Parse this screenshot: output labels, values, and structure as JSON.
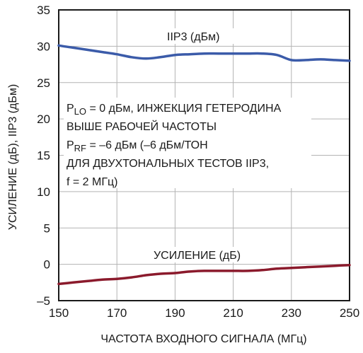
{
  "chart_data": {
    "type": "line",
    "xlabel": "ЧАСТОТА ВХОДНОГО СИГНАЛА  (МГц)",
    "ylabel": "УСИЛЕНИЕ (дБ), IIP3 (дБм)",
    "xlim": [
      150,
      250
    ],
    "ylim": [
      -5,
      35
    ],
    "x_ticks": [
      "150",
      "170",
      "190",
      "210",
      "230",
      "250"
    ],
    "y_ticks": [
      "–5",
      "0",
      "5",
      "10",
      "15",
      "20",
      "25",
      "30",
      "35"
    ],
    "grid": true,
    "series": [
      {
        "name": "IIP3 (дБм)",
        "color": "#3b5ba9",
        "x": [
          150,
          155,
          160,
          165,
          170,
          175,
          180,
          185,
          190,
          195,
          200,
          205,
          210,
          215,
          220,
          225,
          230,
          235,
          240,
          245,
          250
        ],
        "y": [
          30.1,
          29.8,
          29.5,
          29.2,
          28.9,
          28.5,
          28.3,
          28.5,
          28.8,
          28.9,
          29.0,
          29.0,
          29.0,
          29.0,
          29.0,
          28.8,
          28.1,
          28.1,
          28.2,
          28.1,
          28.0
        ]
      },
      {
        "name": "УСИЛЕНИЕ (дБ)",
        "color": "#8b1a2c",
        "x": [
          150,
          155,
          160,
          165,
          170,
          175,
          180,
          185,
          190,
          195,
          200,
          205,
          210,
          215,
          220,
          225,
          230,
          235,
          240,
          245,
          250
        ],
        "y": [
          -2.7,
          -2.5,
          -2.3,
          -2.1,
          -2.0,
          -1.8,
          -1.5,
          -1.3,
          -1.2,
          -1.0,
          -0.9,
          -0.9,
          -0.9,
          -0.9,
          -0.8,
          -0.6,
          -0.5,
          -0.4,
          -0.3,
          -0.2,
          -0.1
        ]
      }
    ],
    "annotation_lines": [
      {
        "parts": [
          {
            "t": "P"
          },
          {
            "t": "LO",
            "sub": true
          },
          {
            "t": " = 0 дБм, ИНЖЕКЦИЯ ГЕТЕРОДИНА"
          }
        ]
      },
      {
        "parts": [
          {
            "t": "ВЫШЕ РАБОЧЕЙ ЧАСТОТЫ"
          }
        ]
      },
      {
        "parts": [
          {
            "t": "P"
          },
          {
            "t": "RF",
            "sub": true
          },
          {
            "t": " = –6 дБм (–6 дБм/ТОН"
          }
        ]
      },
      {
        "parts": [
          {
            "t": "ДЛЯ ДВУХТОНАЛЬНЫХ ТЕСТОВ IIP3,"
          }
        ]
      },
      {
        "parts": [
          {
            "t": "f = 2 МГц)"
          }
        ]
      }
    ]
  }
}
